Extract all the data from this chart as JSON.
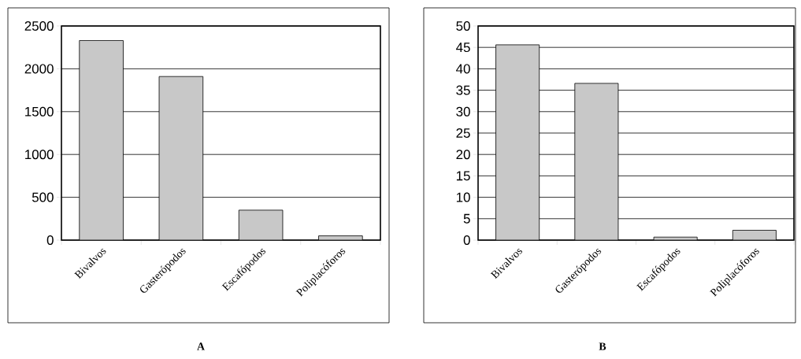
{
  "chart_data": [
    {
      "type": "bar",
      "categories": [
        "Bivalvos",
        "Gasterópodos",
        "Escafópodos",
        "Poliplacóforos"
      ],
      "values": [
        2330,
        1910,
        350,
        50
      ],
      "color": "#c8c8c8",
      "ylim": [
        0,
        2500
      ],
      "yticks": [
        0,
        500,
        1000,
        1500,
        2000,
        2500
      ],
      "grid": "y",
      "annotations": [
        "A"
      ]
    },
    {
      "type": "bar",
      "categories": [
        "Bivalvos",
        "Gasterópodos",
        "Escafópodos",
        "Poliplacóforos"
      ],
      "values": [
        45.6,
        36.6,
        0.7,
        2.3
      ],
      "color": "#c8c8c8",
      "ylim": [
        0,
        50
      ],
      "yticks": [
        0,
        5,
        10,
        15,
        20,
        25,
        30,
        35,
        40,
        45,
        50
      ],
      "grid": "y",
      "annotations": [
        "B"
      ]
    }
  ]
}
